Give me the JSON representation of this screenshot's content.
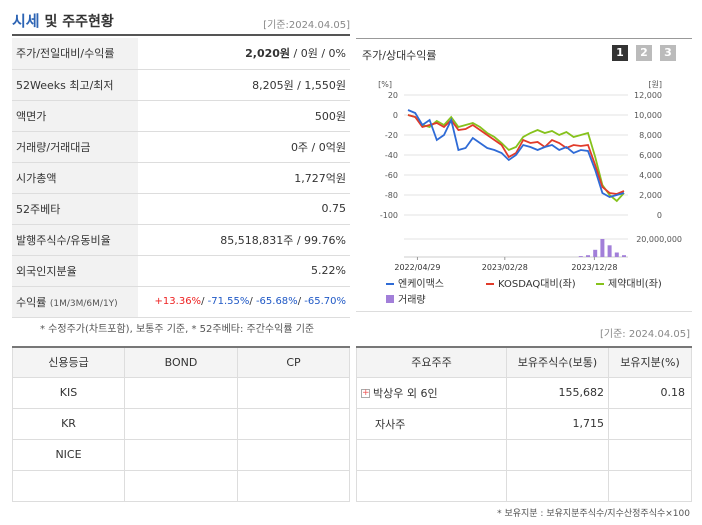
{
  "header": {
    "title_main": "시세",
    "title_rest": " 및 주주현황",
    "date": "[기준:2024.04.05]"
  },
  "quote_rows": [
    {
      "label": "주가/전일대비/수익률",
      "price": "2,020원",
      "rest": " / 0원 / 0%"
    },
    {
      "label": "52Weeks 최고/최저",
      "value": "8,205원 / 1,550원"
    },
    {
      "label": "액면가",
      "value": "500원"
    },
    {
      "label": "거래량/거래대금",
      "value": "0주 / 0억원"
    },
    {
      "label": "시가총액",
      "value": "1,727억원"
    },
    {
      "label": "52주베타",
      "value": "0.75"
    },
    {
      "label": "발행주식수/유동비율",
      "value": "85,518,831주 / 99.76%"
    },
    {
      "label": "외국인지분율",
      "value": "5.22%"
    },
    {
      "label": "수익률",
      "label_sub": "(1M/3M/6M/1Y)",
      "r1": "+13.36%",
      "r2": "-71.55%",
      "r3": "-65.68%",
      "r4": "-65.70%",
      "sep": "/ "
    }
  ],
  "note1": "* 수정주가(차트포함), 보통주 기준, * 52주베타: 주간수익률 기준",
  "chart": {
    "title": "주가/상대수익률",
    "buttons": [
      "1",
      "2",
      "3"
    ],
    "left_unit": "[%]",
    "right_unit": "[원]",
    "left_ticks": [
      "20",
      "0",
      "-20",
      "-40",
      "-60",
      "-80",
      "-100"
    ],
    "right_ticks": [
      "12,000",
      "10,000",
      "8,000",
      "6,000",
      "4,000",
      "2,000",
      "0"
    ],
    "vol_tick": "20,000,000",
    "x_ticks": [
      "2022/04/29",
      "2023/02/28",
      "2023/12/28"
    ],
    "legend": [
      {
        "name": "엔케이맥스",
        "color": "#2f6bd6"
      },
      {
        "name": "KOSDAQ대비(좌)",
        "color": "#e13b2a"
      },
      {
        "name": "제약대비(좌)",
        "color": "#86c21c"
      },
      {
        "name": "거래량",
        "color": "#a27fd9"
      }
    ],
    "colors": {
      "stock": "#2f6bd6",
      "kosdaq": "#e13b2a",
      "pharma": "#86c21c",
      "volume": "#a27fd9"
    }
  },
  "chart_data": {
    "type": "line",
    "x_ticks": [
      "2022/04/29",
      "2023/02/28",
      "2023/12/28"
    ],
    "ylim_left": [
      -100,
      20
    ],
    "ylim_right": [
      0,
      12000
    ],
    "series": [
      {
        "name": "엔케이맥스",
        "values": [
          5,
          2,
          -10,
          -5,
          -25,
          -20,
          -5,
          -35,
          -33,
          -23,
          -28,
          -33,
          -35,
          -38,
          -45,
          -40,
          -30,
          -32,
          -35,
          -32,
          -30,
          -35,
          -32,
          -38,
          -35,
          -36,
          -55,
          -78,
          -82,
          -80,
          -78
        ]
      },
      {
        "name": "KOSDAQ대비(좌)",
        "values": [
          0,
          -2,
          -12,
          -10,
          -8,
          -12,
          -5,
          -15,
          -14,
          -10,
          -15,
          -20,
          -25,
          -30,
          -42,
          -38,
          -25,
          -28,
          -27,
          -32,
          -25,
          -28,
          -33,
          -30,
          -31,
          -30,
          -50,
          -72,
          -78,
          -79,
          -76
        ]
      },
      {
        "name": "제약대비(좌)",
        "values": [
          0,
          -2,
          -10,
          -12,
          -6,
          -10,
          -2,
          -12,
          -10,
          -8,
          -12,
          -18,
          -22,
          -28,
          -35,
          -32,
          -22,
          -18,
          -15,
          -18,
          -16,
          -20,
          -17,
          -22,
          -20,
          -18,
          -42,
          -70,
          -80,
          -86,
          -78
        ]
      }
    ],
    "volume": [
      0,
      0,
      0,
      0,
      0,
      0,
      0,
      0,
      0,
      0,
      0,
      0,
      0,
      0,
      0,
      0,
      0,
      0,
      0,
      0,
      0,
      0,
      0,
      0,
      1000000,
      2000000,
      8000000,
      20000000,
      13000000,
      5000000,
      2000000
    ]
  },
  "note_date2": "[기준: 2024.04.05]",
  "credit": {
    "headers": [
      "신용등급",
      "BOND",
      "CP"
    ],
    "rows": [
      [
        "KIS",
        "",
        ""
      ],
      [
        "KR",
        "",
        ""
      ],
      [
        "NICE",
        "",
        ""
      ],
      [
        "",
        "",
        ""
      ]
    ]
  },
  "holders": {
    "headers": [
      "주요주주",
      "보유주식수(보통)",
      "보유지분(%)"
    ],
    "rows": [
      {
        "name": "박상우 외 6인",
        "shares": "155,682",
        "pct": "0.18",
        "expand": true
      },
      {
        "name": "자사주",
        "shares": "1,715",
        "pct": ""
      },
      {
        "name": "",
        "shares": "",
        "pct": ""
      },
      {
        "name": "",
        "shares": "",
        "pct": ""
      }
    ]
  },
  "note2": "* 보유지분 : 보유지분주식수/지수산정주식수×100"
}
